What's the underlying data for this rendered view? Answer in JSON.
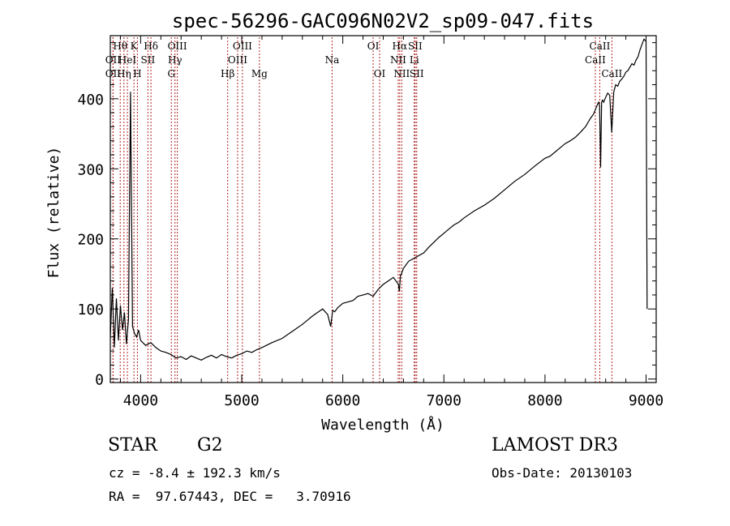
{
  "colors": {
    "axis": "#000000",
    "spectrum": "#000000",
    "line_marker": "#b22222"
  },
  "chart_data": {
    "type": "line",
    "title": "spec-56296-GAC096N02V2_sp09-047.fits",
    "xlabel": "Wavelength (Å)",
    "ylabel": "Flux (relative)",
    "xlim": [
      3700,
      9100
    ],
    "ylim": [
      -5,
      490
    ],
    "xticks": [
      4000,
      5000,
      6000,
      7000,
      8000,
      9000
    ],
    "yticks": [
      0,
      100,
      200,
      300,
      400
    ],
    "grid": false,
    "legend": "none",
    "series": [
      {
        "name": "flux",
        "x": [
          3700,
          3720,
          3740,
          3760,
          3780,
          3800,
          3820,
          3840,
          3860,
          3880,
          3900,
          3920,
          3940,
          3960,
          3980,
          4000,
          4050,
          4100,
          4150,
          4200,
          4250,
          4300,
          4350,
          4400,
          4450,
          4500,
          4550,
          4600,
          4650,
          4700,
          4750,
          4800,
          4850,
          4900,
          4950,
          5000,
          5050,
          5100,
          5150,
          5200,
          5300,
          5400,
          5500,
          5600,
          5700,
          5800,
          5850,
          5880,
          5900,
          5920,
          5950,
          6000,
          6050,
          6100,
          6150,
          6200,
          6250,
          6300,
          6350,
          6400,
          6450,
          6500,
          6550,
          6560,
          6570,
          6580,
          6600,
          6650,
          6700,
          6750,
          6800,
          6850,
          6900,
          6950,
          7000,
          7050,
          7100,
          7150,
          7200,
          7300,
          7400,
          7500,
          7600,
          7700,
          7800,
          7900,
          8000,
          8050,
          8100,
          8150,
          8200,
          8250,
          8300,
          8350,
          8400,
          8450,
          8480,
          8500,
          8520,
          8530,
          8540,
          8550,
          8560,
          8570,
          8580,
          8600,
          8620,
          8640,
          8660,
          8680,
          8700,
          8720,
          8740,
          8760,
          8780,
          8800,
          8820,
          8840,
          8860,
          8880,
          8900,
          8920,
          8940,
          8960,
          8980,
          9000,
          9010
        ],
        "y": [
          60,
          130,
          45,
          115,
          55,
          105,
          70,
          95,
          50,
          85,
          410,
          75,
          65,
          60,
          70,
          55,
          48,
          52,
          45,
          40,
          38,
          35,
          30,
          32,
          28,
          33,
          30,
          27,
          31,
          34,
          30,
          35,
          32,
          30,
          34,
          36,
          40,
          38,
          42,
          45,
          52,
          58,
          68,
          78,
          90,
          100,
          92,
          75,
          98,
          96,
          102,
          108,
          110,
          112,
          118,
          120,
          122,
          118,
          128,
          135,
          140,
          145,
          135,
          125,
          148,
          150,
          158,
          168,
          172,
          176,
          180,
          188,
          195,
          202,
          208,
          214,
          220,
          224,
          230,
          240,
          248,
          258,
          270,
          282,
          292,
          304,
          315,
          318,
          324,
          330,
          336,
          340,
          345,
          352,
          360,
          372,
          378,
          385,
          392,
          395,
          390,
          302,
          395,
          398,
          395,
          402,
          408,
          405,
          352,
          410,
          420,
          418,
          425,
          428,
          432,
          438,
          440,
          445,
          450,
          448,
          455,
          460,
          470,
          478,
          485,
          482,
          100
        ]
      }
    ],
    "lines": [
      {
        "wl": 3727,
        "label": "OII",
        "row": 2
      },
      {
        "wl": 3727,
        "label": "OII",
        "row": 3
      },
      {
        "wl": 3798,
        "label": "Hθ",
        "row": 1
      },
      {
        "wl": 3835,
        "label": "Hη",
        "row": 3
      },
      {
        "wl": 3869,
        "label": "HeI",
        "row": 2
      },
      {
        "wl": 3934,
        "label": "K",
        "row": 1
      },
      {
        "wl": 3968,
        "label": "H",
        "row": 3
      },
      {
        "wl": 4072,
        "label": "SII",
        "row": 2
      },
      {
        "wl": 4102,
        "label": "Hδ",
        "row": 1
      },
      {
        "wl": 4304,
        "label": "G",
        "row": 3
      },
      {
        "wl": 4340,
        "label": "Hγ",
        "row": 2
      },
      {
        "wl": 4363,
        "label": "OIII",
        "row": 1
      },
      {
        "wl": 4861,
        "label": "Hβ",
        "row": 3
      },
      {
        "wl": 4959,
        "label": "OIII",
        "row": 2
      },
      {
        "wl": 5007,
        "label": "OIII",
        "row": 1
      },
      {
        "wl": 5175,
        "label": "Mg",
        "row": 3
      },
      {
        "wl": 5894,
        "label": "Na",
        "row": 2
      },
      {
        "wl": 6300,
        "label": "OI",
        "row": 1
      },
      {
        "wl": 6364,
        "label": "OI",
        "row": 3
      },
      {
        "wl": 6548,
        "label": "NII",
        "row": 2
      },
      {
        "wl": 6563,
        "label": "Hα",
        "row": 1
      },
      {
        "wl": 6583,
        "label": "NII",
        "row": 3
      },
      {
        "wl": 6707,
        "label": "Li",
        "row": 2
      },
      {
        "wl": 6716,
        "label": "SII",
        "row": 1
      },
      {
        "wl": 6731,
        "label": "SII",
        "row": 3
      },
      {
        "wl": 8498,
        "label": "CaII",
        "row": 2
      },
      {
        "wl": 8542,
        "label": "CaII",
        "row": 1
      },
      {
        "wl": 8662,
        "label": "CaII",
        "row": 3
      }
    ]
  },
  "info": {
    "object_class": "STAR",
    "subclass": "G2",
    "survey": "LAMOST DR3",
    "cz": "cz = -8.4 ± 192.3 km/s",
    "obs_date": "Obs-Date: 20130103",
    "radec": "RA =  97.67443, DEC =   3.70916"
  }
}
